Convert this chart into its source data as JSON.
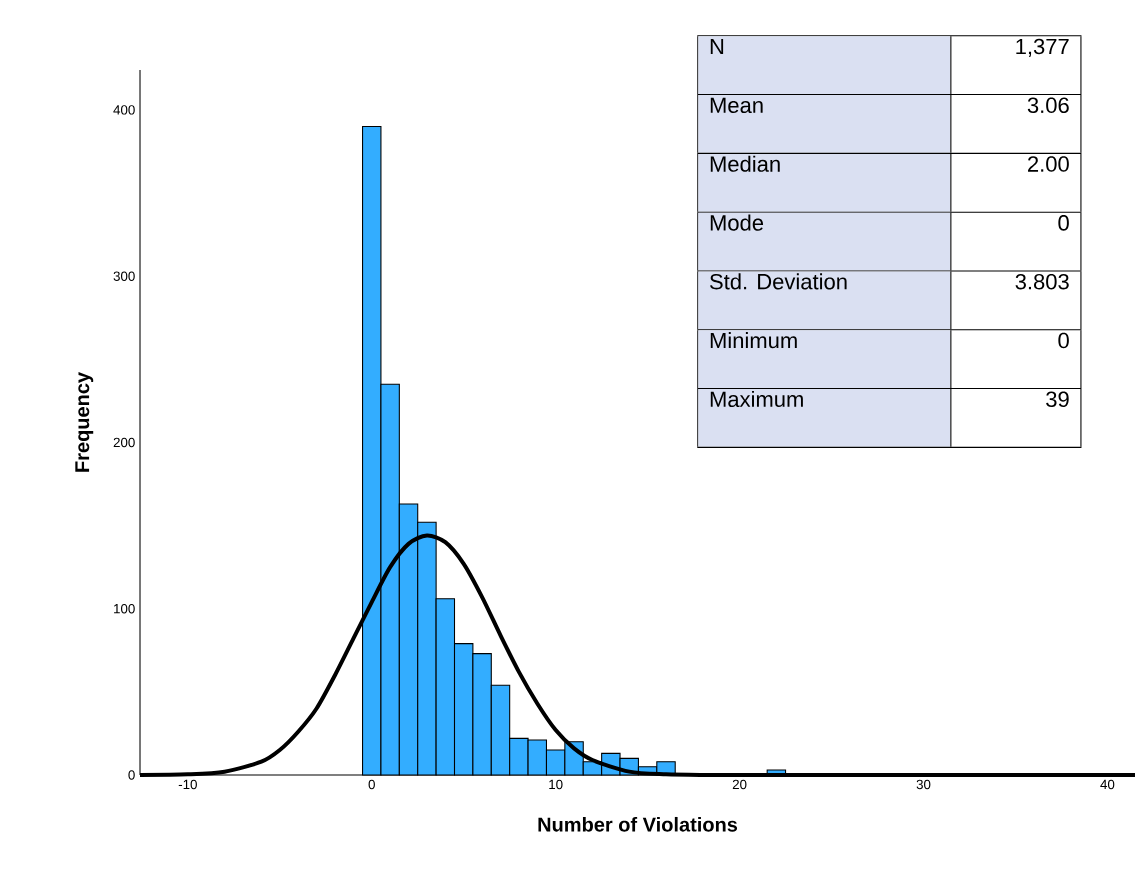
{
  "chart_data": {
    "type": "histogram",
    "xlabel": "Number of Violations",
    "ylabel": "Frequency",
    "bins": [
      -0.5,
      0.5,
      1.5,
      2.5,
      3.5,
      4.5,
      5.5,
      6.5,
      7.5,
      8.5,
      9.5,
      10.5,
      11.5,
      12.5,
      13.5,
      14.5,
      15.5,
      16.5,
      17.5,
      18.5,
      19.5,
      20.5,
      21.5,
      22.5
    ],
    "values": [
      390,
      235,
      163,
      152,
      106,
      79,
      73,
      54,
      22,
      21,
      15,
      20,
      8,
      13,
      10,
      5,
      8,
      0,
      0,
      null,
      0,
      0,
      3
    ],
    "color": "#33adff",
    "series": [
      {
        "type": "line",
        "color": "#000000",
        "x": [
          -12.6,
          -10,
          -8,
          -6,
          -5,
          -4,
          -3,
          -2,
          -1,
          0,
          1,
          2,
          3,
          4,
          5,
          6,
          7,
          8,
          9,
          10,
          11,
          12,
          14,
          16,
          18,
          20,
          30,
          41.5
        ],
        "values": [
          0,
          0.4,
          2,
          8,
          15,
          26,
          40,
          60,
          82,
          104,
          125,
          139,
          144,
          140,
          127,
          107,
          84,
          62,
          43,
          27,
          16,
          9,
          2,
          0.4,
          0,
          0,
          0,
          0
        ]
      }
    ],
    "xlim": [
      -12.6,
      41.5
    ],
    "ylim": [
      0,
      424
    ],
    "xticks": [
      -10,
      0,
      10,
      20,
      30,
      40
    ],
    "yticks": [
      0,
      100,
      200,
      300,
      400
    ],
    "annotations": [
      "N",
      "1,377",
      "Mean",
      "3.06",
      "Median",
      "2.00",
      "Mode",
      "0",
      "Std. Deviation",
      "3.803",
      "Minimum",
      "0",
      "Maximum",
      "39"
    ]
  }
}
